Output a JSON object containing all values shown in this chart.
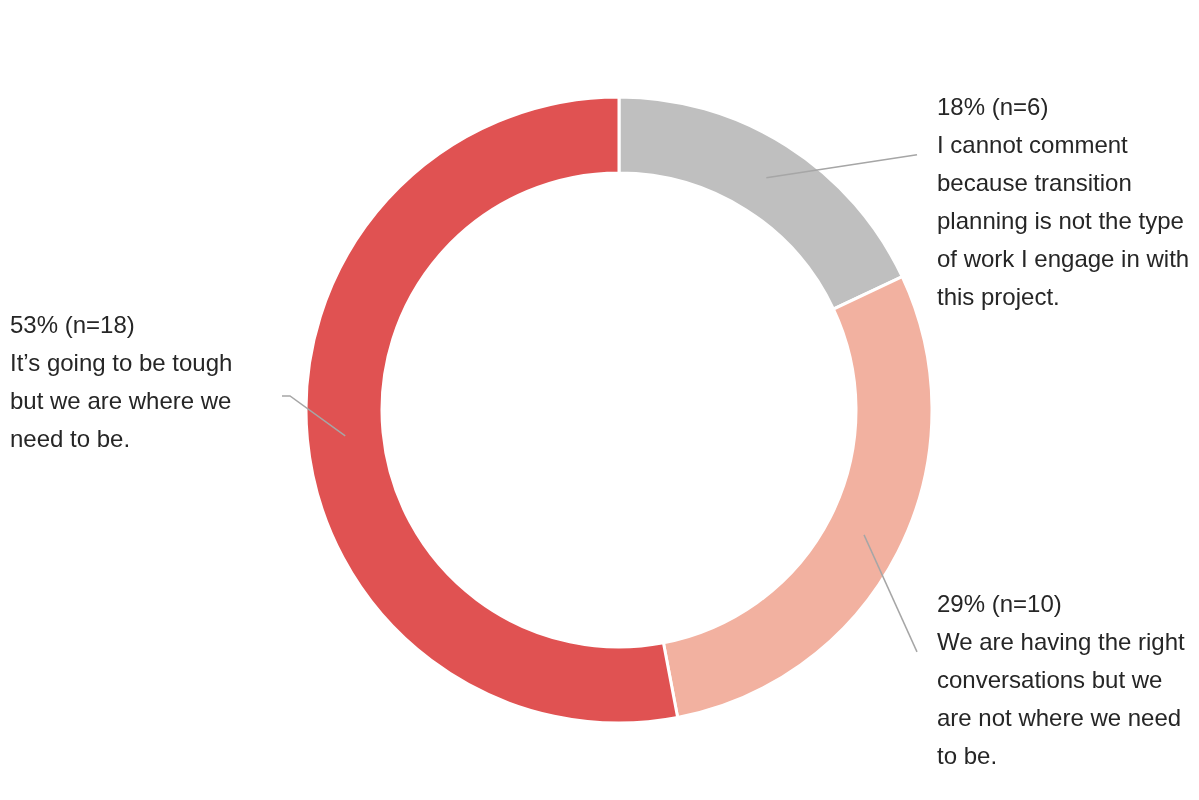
{
  "chart_data": {
    "type": "donut",
    "categories": [
      "I cannot comment because transition planning is not the type of work I engage in with this project.",
      "We are having the right conversations but we are not where we need to be.",
      "It’s going to be tough but we are where we need to be."
    ],
    "values": [
      18,
      29,
      53
    ],
    "colors": [
      "#bfbfbf",
      "#f2b1a0",
      "#e05252"
    ],
    "value_labels": [
      "18% (n=6)",
      "29% (n=10)",
      "53% (n=18)"
    ]
  }
}
